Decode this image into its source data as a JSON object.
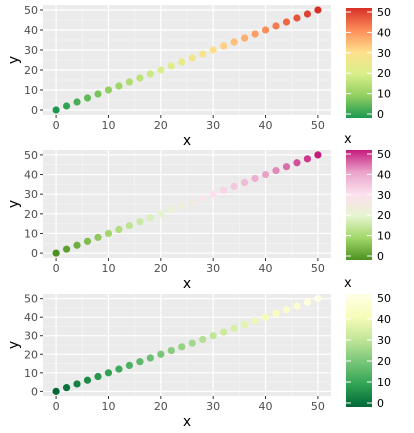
{
  "chart_data": [
    {
      "type": "scatter",
      "x": [
        0,
        2,
        4,
        6,
        8,
        10,
        12,
        14,
        16,
        18,
        20,
        22,
        24,
        26,
        28,
        30,
        32,
        34,
        36,
        38,
        40,
        42,
        44,
        46,
        48,
        50
      ],
      "y": [
        0,
        2,
        4,
        6,
        8,
        10,
        12,
        14,
        16,
        18,
        20,
        22,
        24,
        26,
        28,
        30,
        32,
        34,
        36,
        38,
        40,
        42,
        44,
        46,
        48,
        50
      ],
      "xlabel": "x",
      "ylabel": "y",
      "xlim": [
        -2.5,
        52.5
      ],
      "ylim": [
        -2.5,
        52.5
      ],
      "xticks": [
        0,
        10,
        20,
        30,
        40,
        50
      ],
      "yticks": [
        0,
        10,
        20,
        30,
        40,
        50
      ],
      "grid": true,
      "color_mapped_to": "x",
      "legend": {
        "title": "",
        "placement": "right",
        "ticks": [
          0,
          10,
          20,
          30,
          40,
          50
        ],
        "limits": [
          0,
          50
        ],
        "colors": [
          "#1a9850",
          "#91cf60",
          "#d9ef8b",
          "#fee08b",
          "#fc8d59",
          "#d73027"
        ]
      }
    },
    {
      "type": "scatter",
      "x": [
        0,
        2,
        4,
        6,
        8,
        10,
        12,
        14,
        16,
        18,
        20,
        22,
        24,
        26,
        28,
        30,
        32,
        34,
        36,
        38,
        40,
        42,
        44,
        46,
        48,
        50
      ],
      "y": [
        0,
        2,
        4,
        6,
        8,
        10,
        12,
        14,
        16,
        18,
        20,
        22,
        24,
        26,
        28,
        30,
        32,
        34,
        36,
        38,
        40,
        42,
        44,
        46,
        48,
        50
      ],
      "xlabel": "x",
      "ylabel": "y",
      "xlim": [
        -2.5,
        52.5
      ],
      "ylim": [
        -2.5,
        52.5
      ],
      "xticks": [
        0,
        10,
        20,
        30,
        40,
        50
      ],
      "yticks": [
        0,
        10,
        20,
        30,
        40,
        50
      ],
      "grid": true,
      "color_mapped_to": "x",
      "legend": {
        "title": "x",
        "placement": "right",
        "ticks": [
          0,
          10,
          20,
          30,
          40,
          50
        ],
        "limits": [
          0,
          50
        ],
        "colors": [
          "#4d9221",
          "#a1d76a",
          "#e6f5d0",
          "#fde0ef",
          "#e9a3c9",
          "#c51b7d"
        ]
      }
    },
    {
      "type": "scatter",
      "x": [
        0,
        2,
        4,
        6,
        8,
        10,
        12,
        14,
        16,
        18,
        20,
        22,
        24,
        26,
        28,
        30,
        32,
        34,
        36,
        38,
        40,
        42,
        44,
        46,
        48,
        50
      ],
      "y": [
        0,
        2,
        4,
        6,
        8,
        10,
        12,
        14,
        16,
        18,
        20,
        22,
        24,
        26,
        28,
        30,
        32,
        34,
        36,
        38,
        40,
        42,
        44,
        46,
        48,
        50
      ],
      "xlabel": "x",
      "ylabel": "y",
      "xlim": [
        -2.5,
        52.5
      ],
      "ylim": [
        -2.5,
        52.5
      ],
      "xticks": [
        0,
        10,
        20,
        30,
        40,
        50
      ],
      "yticks": [
        0,
        10,
        20,
        30,
        40,
        50
      ],
      "grid": true,
      "color_mapped_to": "x",
      "legend": {
        "title": "x",
        "placement": "right",
        "ticks": [
          0,
          10,
          20,
          30,
          40,
          50
        ],
        "limits": [
          0,
          50
        ],
        "colors": [
          "#006837",
          "#31a354",
          "#78c679",
          "#c2e699",
          "#f7fcb9",
          "#ffffe5"
        ]
      }
    }
  ],
  "style": {
    "panel_background": "#ebebeb",
    "grid_major": "#ffffff",
    "tick_color": "#333333"
  }
}
